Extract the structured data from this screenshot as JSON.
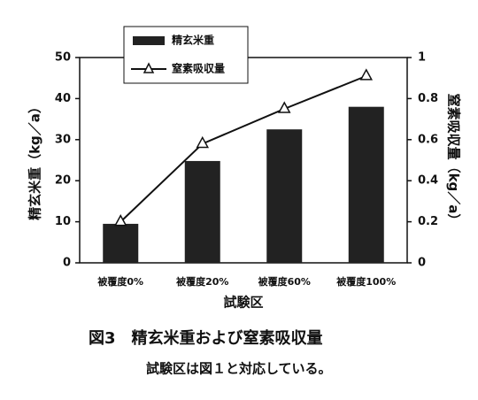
{
  "chart_data": {
    "type": "combo",
    "categories": [
      "被覆度0%",
      "被覆度20%",
      "被覆度60%",
      "被覆度100%"
    ],
    "series": [
      {
        "name": "精玄米重",
        "type": "bar",
        "color": "#222222",
        "values": [
          9.5,
          24.8,
          32.5,
          38
        ]
      },
      {
        "name": "窒素吸収量",
        "type": "line",
        "axis": "y2",
        "color": "#111111",
        "values": [
          0.2,
          0.58,
          0.75,
          0.91
        ]
      }
    ],
    "ylim": [
      0,
      50
    ],
    "yticks": [
      0,
      10,
      20,
      30,
      40,
      50
    ],
    "y2lim": [
      0,
      1
    ],
    "y2ticks": [
      0,
      0.2,
      0.4,
      0.6,
      0.8,
      1
    ],
    "ylabel": "精玄米重（kg／a）",
    "y2label": "窒素吸収量（kg／a）",
    "xlabel": "試験区",
    "legend": "top-left",
    "grid": false,
    "caption": "図3　精玄米重および窒素吸収量",
    "note": "試験区は図１と対応している。"
  }
}
